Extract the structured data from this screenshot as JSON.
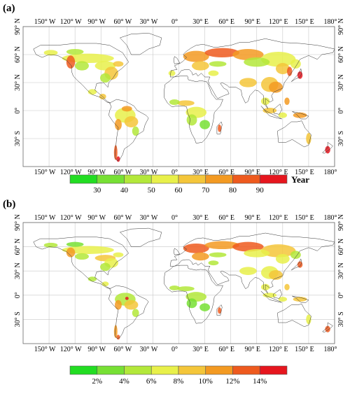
{
  "panels": [
    {
      "label": "(a)",
      "legend": {
        "labels": [
          "30",
          "40",
          "50",
          "60",
          "70",
          "80",
          "90"
        ],
        "unit": "Year",
        "colors": [
          "#22dd22",
          "#77e034",
          "#b3e83a",
          "#e8f04a",
          "#f4c63a",
          "#f39a22",
          "#ee5a1e",
          "#e6161e"
        ]
      }
    },
    {
      "label": "(b)",
      "legend": {
        "labels": [
          "2%",
          "4%",
          "6%",
          "8%",
          "10%",
          "12%",
          "14%"
        ],
        "unit": "",
        "colors": [
          "#22dd22",
          "#77e034",
          "#b3e83a",
          "#e8f04a",
          "#f4c63a",
          "#f39a22",
          "#ee5a1e",
          "#e6161e"
        ]
      }
    }
  ],
  "axes": {
    "lon_labels": [
      "150° W",
      "120° W",
      "90° W",
      "60° W",
      "30° W",
      "0°",
      "30° E",
      "60° E",
      "90° E",
      "120° E",
      "150° E",
      "180°"
    ],
    "lat_labels": [
      "90° N",
      "60° N",
      "30° N",
      "0°",
      "30° S"
    ]
  }
}
